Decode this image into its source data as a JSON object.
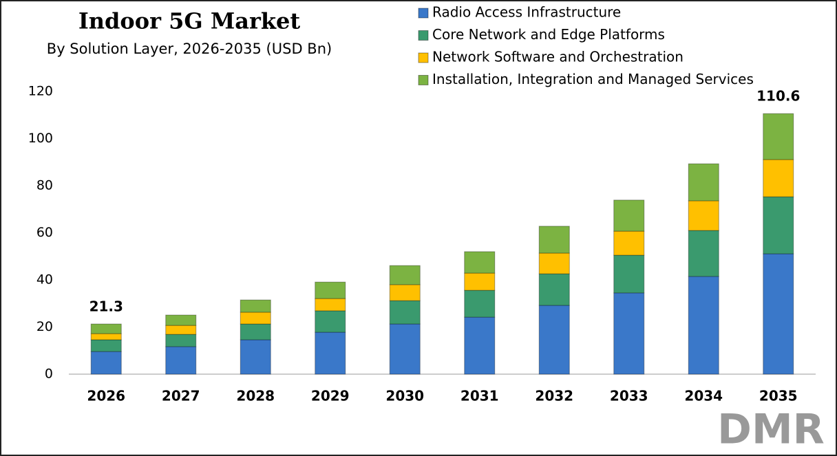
{
  "chart_data": {
    "type": "stacked-bar",
    "title": "Indoor 5G Market",
    "subtitle": "By Solution Layer, 2026-2035 (USD Bn)",
    "categories": [
      "2026",
      "2027",
      "2028",
      "2029",
      "2030",
      "2031",
      "2032",
      "2033",
      "2034",
      "2035"
    ],
    "series": [
      {
        "name": "Radio Access Infrastructure",
        "color": "#3a78c9",
        "values": [
          9.6,
          11.7,
          14.6,
          17.8,
          21.3,
          24.2,
          29.2,
          34.5,
          41.5,
          51.1
        ]
      },
      {
        "name": "Core Network and Edge Platforms",
        "color": "#3a9a6e",
        "values": [
          5.0,
          5.2,
          6.7,
          9.1,
          9.9,
          11.4,
          13.4,
          16.0,
          19.5,
          24.2
        ]
      },
      {
        "name": "Network Software and Orchestration",
        "color": "#ffc000",
        "values": [
          2.6,
          3.8,
          5.0,
          5.2,
          6.8,
          7.3,
          8.8,
          10.2,
          12.6,
          15.8
        ]
      },
      {
        "name": "Installation, Integration and Managed Services",
        "color": "#7cb342",
        "values": [
          4.1,
          4.4,
          5.2,
          7.0,
          8.1,
          9.1,
          11.4,
          13.2,
          15.7,
          19.5
        ]
      }
    ],
    "totals": [
      21.3,
      null,
      null,
      null,
      null,
      null,
      null,
      null,
      null,
      110.6
    ],
    "ylim": [
      0,
      120
    ],
    "yticks": [
      0,
      20,
      40,
      60,
      80,
      100,
      120
    ],
    "grid": false,
    "logo": "DMR"
  }
}
